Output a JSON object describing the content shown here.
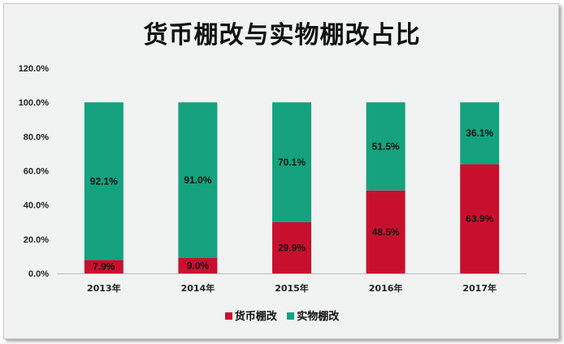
{
  "chart_data": {
    "type": "bar",
    "stacked": true,
    "title": "货币棚改与实物棚改占比",
    "categories": [
      "2013年",
      "2014年",
      "2015年",
      "2016年",
      "2017年"
    ],
    "series": [
      {
        "name": "货币棚改",
        "color": "#c8102e",
        "values": [
          7.9,
          9.0,
          29.9,
          48.5,
          63.9
        ],
        "labels": [
          "7.9%",
          "9.0%",
          "29.9%",
          "48.5%",
          "63.9%"
        ]
      },
      {
        "name": "实物棚改",
        "color": "#14a27f",
        "values": [
          92.1,
          91.0,
          70.1,
          51.5,
          36.1
        ],
        "labels": [
          "92.1%",
          "91.0%",
          "70.1%",
          "51.5%",
          "36.1%"
        ]
      }
    ],
    "ylim": [
      0,
      120
    ],
    "yticks": [
      "0.0%",
      "20.0%",
      "40.0%",
      "60.0%",
      "80.0%",
      "100.0%",
      "120.0%"
    ],
    "grid": false,
    "legend": "bottom"
  }
}
